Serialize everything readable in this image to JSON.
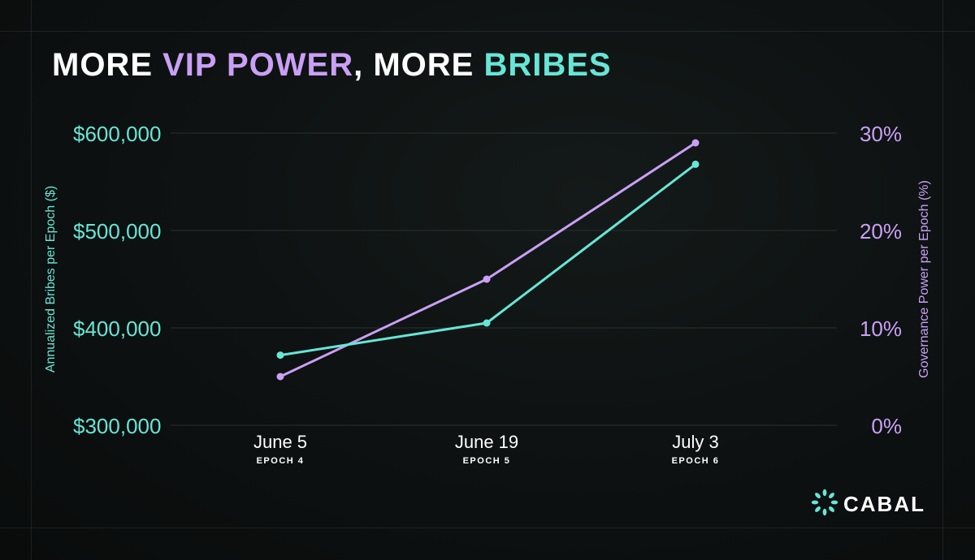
{
  "title": {
    "part1": "MORE ",
    "part2": "VIP POWER",
    "part3": ", MORE ",
    "part4": "BRIBES"
  },
  "brand": {
    "logo_text": "CABAL",
    "logo_icon": "cabal-flower-icon"
  },
  "colors": {
    "background": "#0c0f0f",
    "teal": "#66e6d6",
    "purple": "#c9a0f5",
    "grid": "#2a302f",
    "text": "#ffffff"
  },
  "chart_data": {
    "type": "line",
    "categories": [
      "June 5",
      "June 19",
      "July 3"
    ],
    "sublabels": [
      "EPOCH 4",
      "EPOCH 5",
      "EPOCH 6"
    ],
    "series": [
      {
        "name": "",
        "axis": "left",
        "color": "#66e6d6",
        "values": [
          372000,
          405000,
          568000
        ]
      },
      {
        "name": "",
        "axis": "right",
        "color": "#c9a0f5",
        "values": [
          5,
          15,
          29
        ]
      }
    ],
    "ylabel_left": "Annualized Bribes per Epoch ($)",
    "ylabel_right": "Governance Power per Epoch (%)",
    "ylim_left": [
      300000,
      600000
    ],
    "ylim_right": [
      0,
      30
    ],
    "yticks_left": [
      "$300,000",
      "$400,000",
      "$500,000",
      "$600,000"
    ],
    "yticks_left_values": [
      300000,
      400000,
      500000,
      600000
    ],
    "yticks_right": [
      "0%",
      "10%",
      "20%",
      "30%"
    ],
    "yticks_right_values": [
      0,
      10,
      20,
      30
    ],
    "grid": true,
    "legend": "none"
  }
}
